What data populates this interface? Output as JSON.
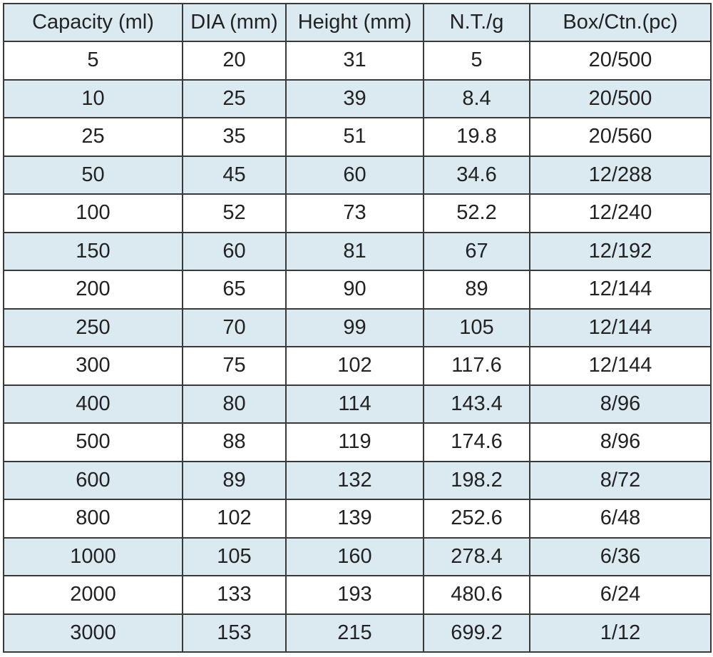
{
  "table": {
    "header": [
      "Capacity (ml)",
      "DIA (mm)",
      "Height (mm)",
      "N.T./g",
      "Box/Ctn.(pc)"
    ],
    "rows": [
      [
        5,
        20,
        31,
        5,
        "20/500"
      ],
      [
        10,
        25,
        39,
        8.4,
        "20/500"
      ],
      [
        25,
        35,
        51,
        19.8,
        "20/560"
      ],
      [
        50,
        45,
        60,
        34.6,
        "12/288"
      ],
      [
        100,
        52,
        73,
        52.2,
        "12/240"
      ],
      [
        150,
        60,
        81,
        67,
        "12/192"
      ],
      [
        200,
        65,
        90,
        89,
        "12/144"
      ],
      [
        250,
        70,
        99,
        105,
        "12/144"
      ],
      [
        300,
        75,
        102,
        117.6,
        "12/144"
      ],
      [
        400,
        80,
        114,
        143.4,
        "8/96"
      ],
      [
        500,
        88,
        119,
        174.6,
        "8/96"
      ],
      [
        600,
        89,
        132,
        198.2,
        "8/72"
      ],
      [
        800,
        102,
        139,
        252.6,
        "6/48"
      ],
      [
        1000,
        105,
        160,
        278.4,
        "6/36"
      ],
      [
        2000,
        133,
        193,
        480.6,
        "6/24"
      ],
      [
        3000,
        153,
        215,
        699.2,
        "1/12"
      ]
    ]
  }
}
